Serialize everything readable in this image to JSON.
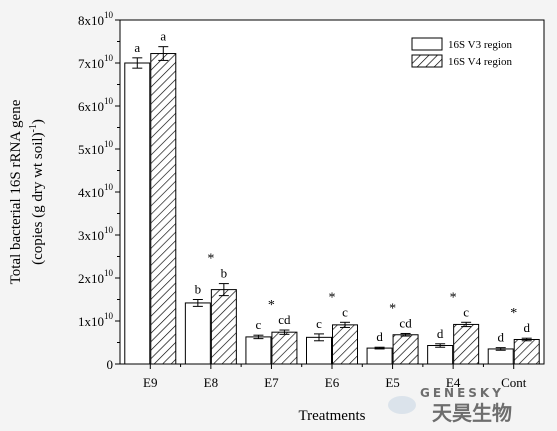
{
  "chart_data": {
    "type": "bar",
    "title": "",
    "xlabel": "Treatments",
    "ylabel_line1": "Total bacterial 16S rRNA gene",
    "ylabel_line2": "(copies (g dry wt soil)",
    "ylabel_line2_sup": "-1",
    "ylabel_line2_end": ")",
    "ylim": [
      0,
      8
    ],
    "y_ticks": [
      {
        "value": 0,
        "base": "0",
        "exp": ""
      },
      {
        "value": 1,
        "base": "1x10",
        "exp": "10"
      },
      {
        "value": 2,
        "base": "2x10",
        "exp": "10"
      },
      {
        "value": 3,
        "base": "3x10",
        "exp": "10"
      },
      {
        "value": 4,
        "base": "4x10",
        "exp": "10"
      },
      {
        "value": 5,
        "base": "5x10",
        "exp": "10"
      },
      {
        "value": 6,
        "base": "6x10",
        "exp": "10"
      },
      {
        "value": 7,
        "base": "7x10",
        "exp": "10"
      },
      {
        "value": 8,
        "base": "8x10",
        "exp": "10"
      }
    ],
    "categories": [
      "E9",
      "E8",
      "E7",
      "E6",
      "E5",
      "E4",
      "Cont"
    ],
    "series": [
      {
        "name": "16S V3 region",
        "pattern": "none",
        "values": [
          7.0,
          1.42,
          0.63,
          0.62,
          0.37,
          0.43,
          0.35
        ],
        "errors": [
          0.12,
          0.08,
          0.04,
          0.08,
          0.02,
          0.04,
          0.03
        ],
        "labels": [
          "a",
          "b",
          "c",
          "c",
          "d",
          "d",
          "d"
        ]
      },
      {
        "name": "16S V4 region",
        "pattern": "hatched",
        "values": [
          7.22,
          1.73,
          0.74,
          0.91,
          0.68,
          0.92,
          0.57
        ],
        "errors": [
          0.16,
          0.14,
          0.05,
          0.06,
          0.03,
          0.05,
          0.03
        ],
        "labels": [
          "a",
          "b",
          "cd",
          "c",
          "cd",
          "c",
          "d"
        ]
      }
    ],
    "significance": [
      "",
      "*",
      "*",
      "*",
      "*",
      "*",
      "*"
    ],
    "legend_position": "top-right",
    "grid": false
  },
  "watermark": {
    "text_latin": "GENESKY",
    "text_cjk": "天昊生物"
  }
}
